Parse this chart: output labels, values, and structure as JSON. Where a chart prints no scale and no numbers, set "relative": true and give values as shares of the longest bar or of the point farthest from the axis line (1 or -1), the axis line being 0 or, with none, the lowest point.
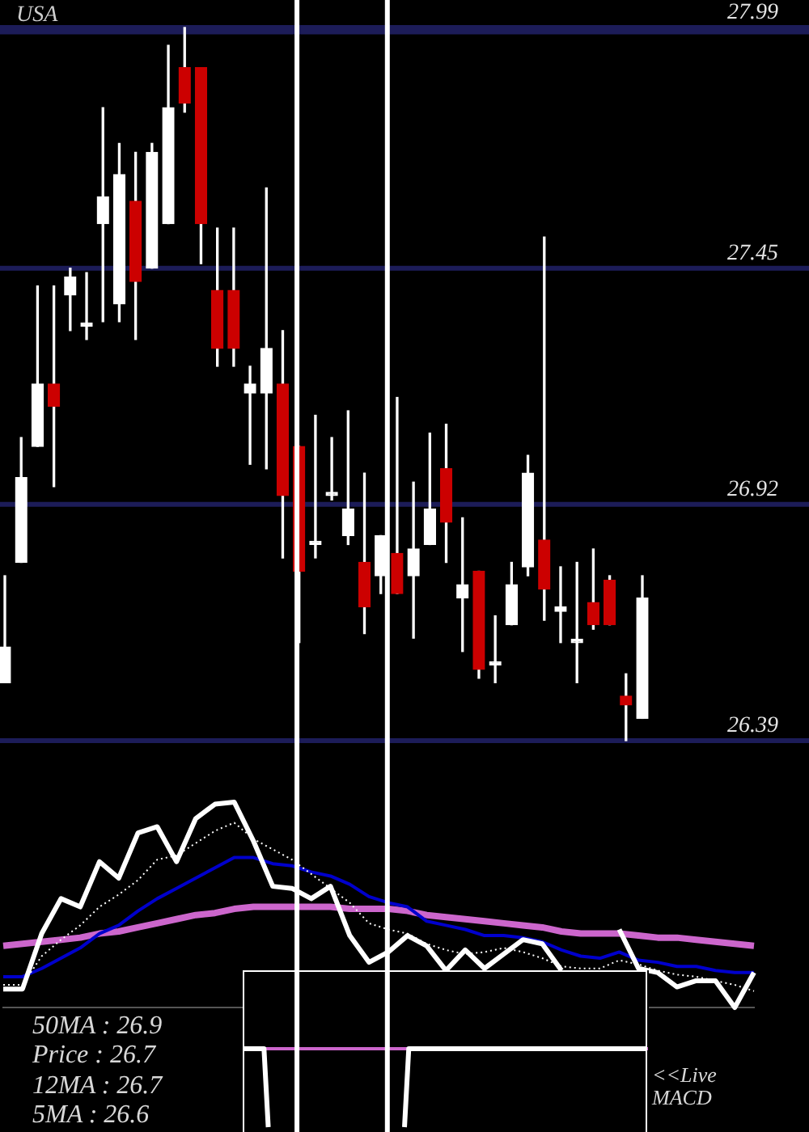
{
  "chart_data": [
    {
      "type": "candlestick",
      "title": "USA",
      "categories": [
        null,
        null,
        null,
        null,
        null,
        null,
        null,
        null,
        null,
        null,
        null,
        null,
        null,
        null,
        null,
        null,
        null,
        null,
        null,
        null,
        null,
        null,
        null,
        null,
        null,
        null,
        null,
        null,
        null,
        null,
        null,
        null,
        null,
        null,
        null,
        null,
        null,
        null,
        null,
        null
      ],
      "ohlc": [
        [
          26.52,
          26.76,
          26.52,
          26.6
        ],
        [
          26.79,
          27.07,
          26.79,
          26.98
        ],
        [
          27.05,
          27.41,
          27.05,
          27.19
        ],
        [
          27.19,
          27.41,
          26.96,
          27.14
        ],
        [
          27.39,
          27.45,
          27.31,
          27.43
        ],
        [
          27.32,
          27.44,
          27.29,
          27.32
        ],
        [
          27.55,
          27.81,
          27.33,
          27.61
        ],
        [
          27.37,
          27.73,
          27.33,
          27.66
        ],
        [
          27.6,
          27.71,
          27.29,
          27.42
        ],
        [
          27.45,
          27.73,
          27.45,
          27.71
        ],
        [
          27.55,
          27.95,
          27.55,
          27.81
        ],
        [
          27.9,
          27.99,
          27.8,
          27.82
        ],
        [
          27.9,
          27.9,
          27.46,
          27.55
        ],
        [
          27.4,
          27.54,
          27.23,
          27.27
        ],
        [
          27.4,
          27.54,
          27.23,
          27.27
        ],
        [
          27.17,
          27.23,
          27.01,
          27.19
        ],
        [
          27.17,
          27.63,
          27.0,
          27.27
        ],
        [
          27.19,
          27.31,
          26.8,
          26.94
        ],
        [
          27.05,
          27.05,
          26.61,
          26.77
        ],
        [
          26.83,
          27.12,
          26.8,
          26.83
        ],
        [
          26.94,
          27.07,
          26.93,
          26.94
        ],
        [
          26.85,
          27.13,
          26.83,
          26.91
        ],
        [
          26.79,
          26.99,
          26.63,
          26.69
        ],
        [
          26.76,
          26.85,
          26.72,
          26.85
        ],
        [
          26.81,
          27.16,
          26.72,
          26.72
        ],
        [
          26.76,
          26.97,
          26.62,
          26.82
        ],
        [
          26.83,
          27.08,
          26.83,
          26.91
        ],
        [
          27.0,
          27.1,
          26.79,
          26.88
        ],
        [
          26.71,
          26.89,
          26.59,
          26.74
        ],
        [
          26.77,
          26.77,
          26.53,
          26.55
        ],
        [
          26.56,
          26.67,
          26.52,
          26.56
        ],
        [
          26.65,
          26.79,
          26.65,
          26.74
        ],
        [
          26.78,
          27.03,
          26.76,
          26.99
        ],
        [
          26.84,
          27.52,
          26.66,
          26.73
        ],
        [
          26.68,
          26.78,
          26.61,
          26.69
        ],
        [
          26.61,
          26.79,
          26.52,
          26.61
        ],
        [
          26.7,
          26.82,
          26.64,
          26.65
        ],
        [
          26.75,
          26.76,
          26.65,
          26.65
        ],
        [
          26.49,
          26.54,
          26.39,
          26.47
        ],
        [
          26.44,
          26.76,
          26.44,
          26.71
        ]
      ],
      "colors": [
        "#ffffff",
        "#ffffff",
        "#ffffff",
        "#cc0000",
        "#ffffff",
        "#ffffff",
        "#ffffff",
        "#ffffff",
        "#cc0000",
        "#ffffff",
        "#ffffff",
        "#cc0000",
        "#cc0000",
        "#cc0000",
        "#cc0000",
        "#ffffff",
        "#ffffff",
        "#cc0000",
        "#cc0000",
        "#ffffff",
        "#ffffff",
        "#ffffff",
        "#cc0000",
        "#ffffff",
        "#cc0000",
        "#ffffff",
        "#ffffff",
        "#cc0000",
        "#ffffff",
        "#cc0000",
        "#ffffff",
        "#ffffff",
        "#ffffff",
        "#cc0000",
        "#ffffff",
        "#ffffff",
        "#cc0000",
        "#cc0000",
        "#cc0000",
        "#ffffff"
      ],
      "ylim": [
        26.39,
        27.99
      ],
      "yticks": [
        26.39,
        26.92,
        27.45,
        {
          "value": 27.98,
          "label": null
        },
        27.99
      ],
      "grid": "y"
    },
    {
      "type": "line",
      "relative": true,
      "categories": [
        null,
        null,
        null,
        null,
        null,
        null,
        null,
        null,
        null,
        null,
        null,
        null,
        null,
        null,
        null,
        null,
        null,
        null,
        null,
        null,
        null,
        null,
        null,
        null,
        null,
        null,
        null,
        null,
        null,
        null,
        null,
        null,
        null,
        null,
        null,
        null,
        null,
        null,
        null,
        null
      ],
      "series": [
        {
          "color": "#ffffff",
          "values": [
            0.09,
            0.09,
            0.36,
            0.53,
            0.49,
            0.71,
            0.63,
            0.85,
            0.88,
            0.71,
            0.92,
            0.99,
            1,
            0.81,
            0.59,
            0.58,
            0.53,
            0.59,
            0.35,
            0.22,
            0.27,
            0.35,
            0.3,
            0.18,
            0.28,
            0.19,
            0.26,
            0.33,
            0.31,
            0.18,
            null,
            null,
            0.38,
            0.19,
            0.17,
            0.1,
            0.13,
            0.13,
            0,
            0.17
          ]
        },
        {
          "color": "#ffffff",
          "line_style": "dotted",
          "values": [
            0.11,
            0.11,
            0.25,
            0.33,
            0.4,
            0.49,
            0.55,
            0.62,
            0.72,
            0.74,
            0.8,
            0.86,
            0.9,
            0.82,
            0.77,
            0.72,
            0.65,
            0.58,
            0.51,
            0.41,
            0.38,
            0.36,
            0.31,
            0.28,
            0.26,
            0.27,
            0.29,
            0.27,
            0.24,
            0.2,
            0.19,
            0.19,
            0.23,
            0.21,
            0.18,
            0.16,
            0.15,
            0.13,
            0.11,
            0.08
          ]
        },
        {
          "color": "#0000cc",
          "values": [
            0.15,
            0.15,
            0.19,
            0.24,
            0.29,
            0.36,
            0.4,
            0.47,
            0.53,
            0.58,
            0.63,
            0.68,
            0.73,
            0.73,
            0.7,
            0.69,
            0.66,
            0.64,
            0.6,
            0.54,
            0.51,
            0.49,
            0.42,
            0.4,
            0.38,
            0.35,
            0.35,
            0.34,
            0.32,
            0.28,
            0.25,
            0.24,
            0.27,
            0.23,
            0.22,
            0.2,
            0.2,
            0.18,
            0.17,
            0.17
          ]
        },
        {
          "color": "#cc66cc",
          "values": [
            0.3,
            0.31,
            0.32,
            0.33,
            0.34,
            0.36,
            0.37,
            0.39,
            0.41,
            0.43,
            0.45,
            0.46,
            0.48,
            0.49,
            0.49,
            0.49,
            0.49,
            0.49,
            0.48,
            0.48,
            0.48,
            0.47,
            0.45,
            0.44,
            0.43,
            0.42,
            0.41,
            0.4,
            0.39,
            0.37,
            0.36,
            0.36,
            0.36,
            0.35,
            0.34,
            0.34,
            0.33,
            0.32,
            0.31,
            0.3
          ]
        }
      ],
      "annotations": [
        "50MA : 26.9",
        "Price : 26.7",
        "12MA : 26.7",
        "5MA : 26.6"
      ]
    },
    {
      "type": "line",
      "relative": true,
      "categories": [
        null,
        null,
        null,
        null,
        null,
        null,
        null,
        null,
        null,
        null,
        null,
        null,
        null,
        null,
        null,
        null,
        null,
        null,
        null,
        null,
        null,
        null,
        null,
        null,
        null,
        null,
        null,
        null,
        null,
        null,
        null,
        null,
        null,
        null,
        null,
        null,
        null,
        null,
        null,
        null,
        null,
        null,
        null,
        null,
        null,
        null,
        null,
        null,
        null,
        null,
        null,
        null,
        null,
        null,
        null,
        null,
        null,
        null,
        null,
        null,
        null,
        null,
        null,
        null,
        null,
        null,
        null,
        null,
        null,
        null,
        null,
        null,
        null,
        null,
        null,
        null,
        null,
        null,
        null,
        null,
        null,
        null,
        null,
        null,
        null,
        null,
        null,
        null,
        null,
        null,
        null,
        null,
        null,
        null,
        null,
        null
      ],
      "color": "#ffffff",
      "values": [
        0,
        0,
        0,
        0,
        0,
        0,
        -1,
        null,
        null,
        null,
        null,
        null,
        null,
        null,
        null,
        null,
        null,
        null,
        null,
        null,
        null,
        null,
        null,
        null,
        null,
        null,
        null,
        null,
        null,
        null,
        null,
        null,
        null,
        null,
        null,
        null,
        null,
        null,
        -1,
        0,
        0,
        0,
        0,
        0,
        0,
        0,
        0,
        0,
        0,
        0,
        0,
        0,
        0,
        0,
        0,
        0,
        0,
        0,
        0,
        0,
        0,
        0,
        0,
        0,
        0,
        0,
        0,
        0,
        0,
        0,
        0,
        0,
        0,
        0,
        0,
        0,
        0,
        0,
        0,
        0,
        0,
        0,
        0,
        0,
        0,
        0,
        0,
        0,
        0,
        0,
        0,
        0,
        0,
        0,
        0,
        0
      ],
      "annotations": [
        "<<Live MACD"
      ]
    }
  ]
}
